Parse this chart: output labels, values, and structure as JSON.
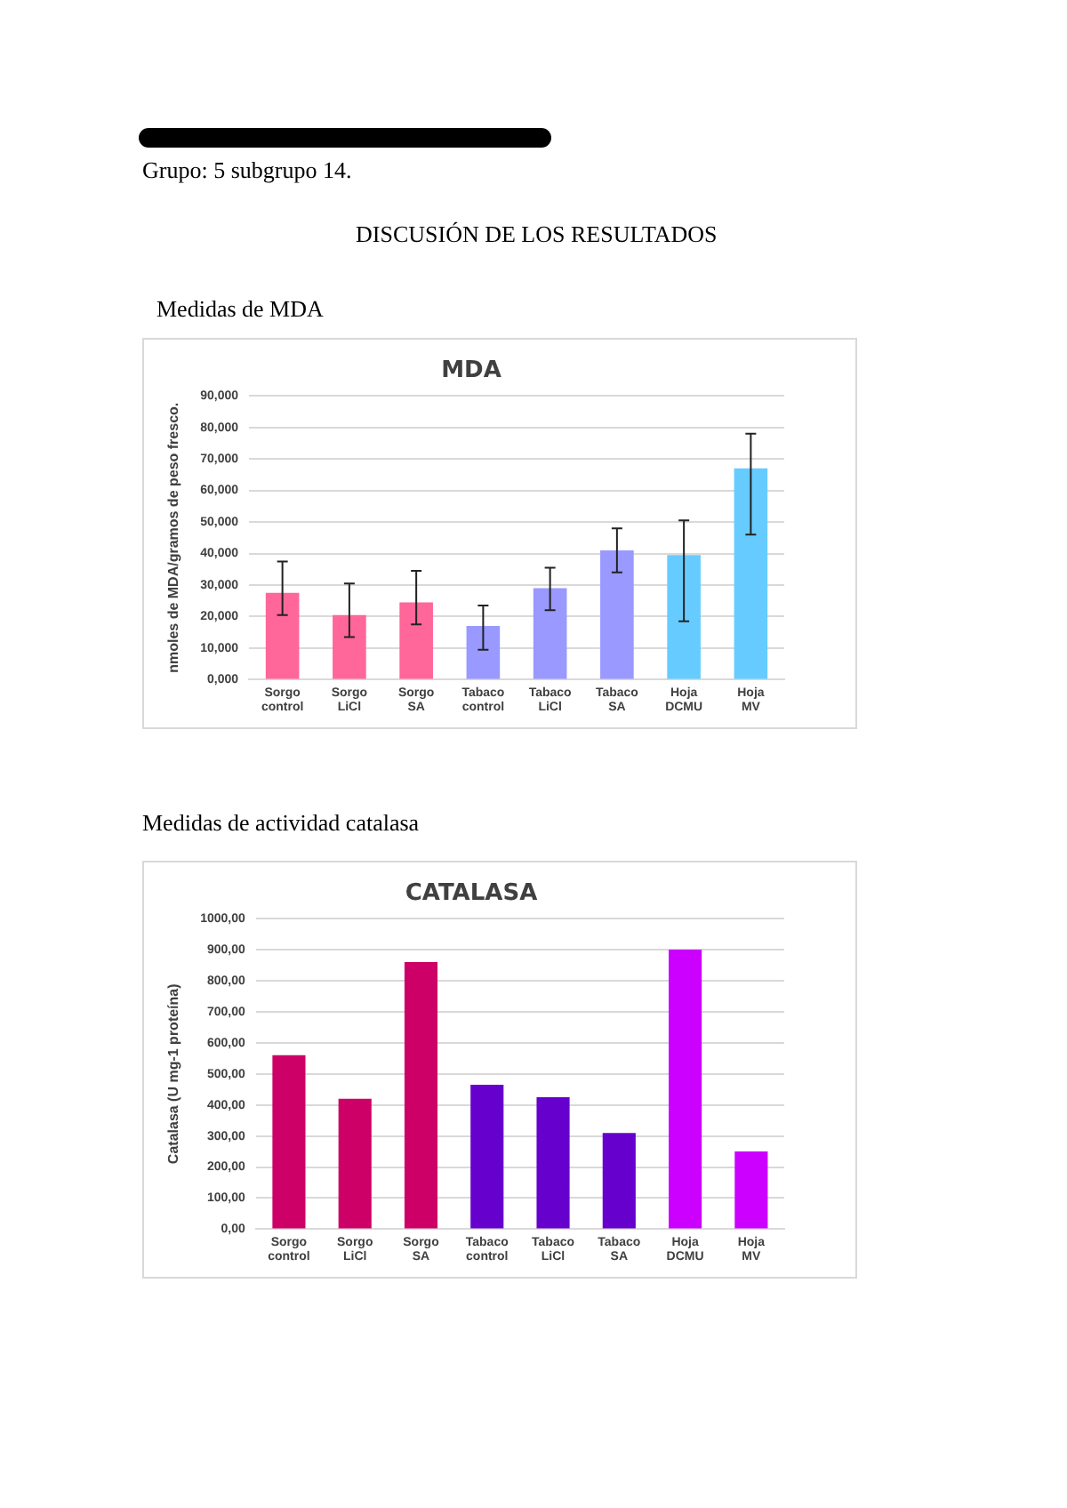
{
  "chart_data": [
    {
      "type": "bar",
      "title": "MDA",
      "ylabel": "nmoles de MDA/gramos de peso fresco.",
      "annotations": [
        "Grupo: 5 subgrupo 14.",
        "DISCUSIÓN DE LOS RESULTADOS",
        "Medidas de MDA"
      ],
      "categories": [
        "Sorgo control",
        "Sorgo LiCl",
        "Sorgo SA",
        "Tabaco control",
        "Tabaco LiCl",
        "Tabaco SA",
        "Hoja DCMU",
        "Hoja MV"
      ],
      "values": [
        27.5,
        20.5,
        24.5,
        17,
        29,
        41,
        39.5,
        67
      ],
      "colors": [
        "#ff6699",
        "#ff6699",
        "#ff6699",
        "#9999ff",
        "#9999ff",
        "#9999ff",
        "#66ccff",
        "#66ccff"
      ],
      "errors": [
        [
          20.5,
          37.5
        ],
        [
          13.5,
          30.5
        ],
        [
          17.5,
          34.5
        ],
        [
          9.5,
          23.5
        ],
        [
          22,
          35.5
        ],
        [
          34,
          48
        ],
        [
          18.5,
          50.5
        ],
        [
          46,
          78
        ]
      ],
      "ylim": [
        0,
        90
      ],
      "yticks": [
        {
          "value": 0,
          "label": "0,000"
        },
        {
          "value": 10,
          "label": "10,000"
        },
        {
          "value": 20,
          "label": "20,000"
        },
        {
          "value": 30,
          "label": "30,000"
        },
        {
          "value": 40,
          "label": "40,000"
        },
        {
          "value": 50,
          "label": "50,000"
        },
        {
          "value": 60,
          "label": "60,000"
        },
        {
          "value": 70,
          "label": "70,000"
        },
        {
          "value": 80,
          "label": "80,000"
        },
        {
          "value": 90,
          "label": "90,000"
        }
      ],
      "grid": "y"
    },
    {
      "type": "bar",
      "title": "CATALASA",
      "ylabel": "Catalasa (U mg-1 proteína)",
      "annotations": [
        "Medidas de actividad catalasa"
      ],
      "categories": [
        "Sorgo control",
        "Sorgo LiCl",
        "Sorgo SA",
        "Tabaco control",
        "Tabaco LiCl",
        "Tabaco SA",
        "Hoja DCMU",
        "Hoja MV"
      ],
      "values": [
        560,
        420,
        860,
        465,
        425,
        310,
        900,
        250
      ],
      "colors": [
        "#cc0066",
        "#cc0066",
        "#cc0066",
        "#6600cc",
        "#6600cc",
        "#6600cc",
        "#cc00ff",
        "#cc00ff"
      ],
      "ylim": [
        0,
        1000
      ],
      "yticks": [
        {
          "value": 0,
          "label": "0,00"
        },
        {
          "value": 100,
          "label": "100,00"
        },
        {
          "value": 200,
          "label": "200,00"
        },
        {
          "value": 300,
          "label": "300,00"
        },
        {
          "value": 400,
          "label": "400,00"
        },
        {
          "value": 500,
          "label": "500,00"
        },
        {
          "value": 600,
          "label": "600,00"
        },
        {
          "value": 700,
          "label": "700,00"
        },
        {
          "value": 800,
          "label": "800,00"
        },
        {
          "value": 900,
          "label": "900,00"
        },
        {
          "value": 1000,
          "label": "1000,00"
        }
      ],
      "grid": "y"
    }
  ]
}
